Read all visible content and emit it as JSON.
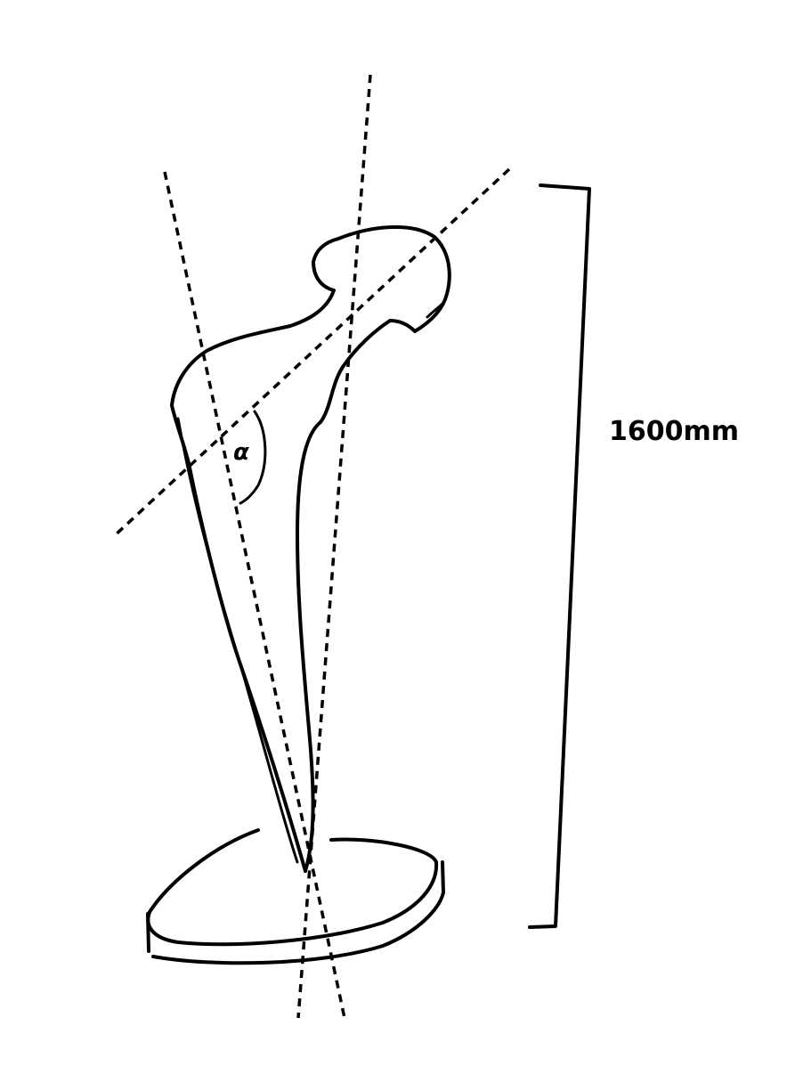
{
  "diagram": {
    "ink_color": "#000000",
    "background_color": "#ffffff",
    "angle_label": "α",
    "height_label": "1600mm"
  }
}
